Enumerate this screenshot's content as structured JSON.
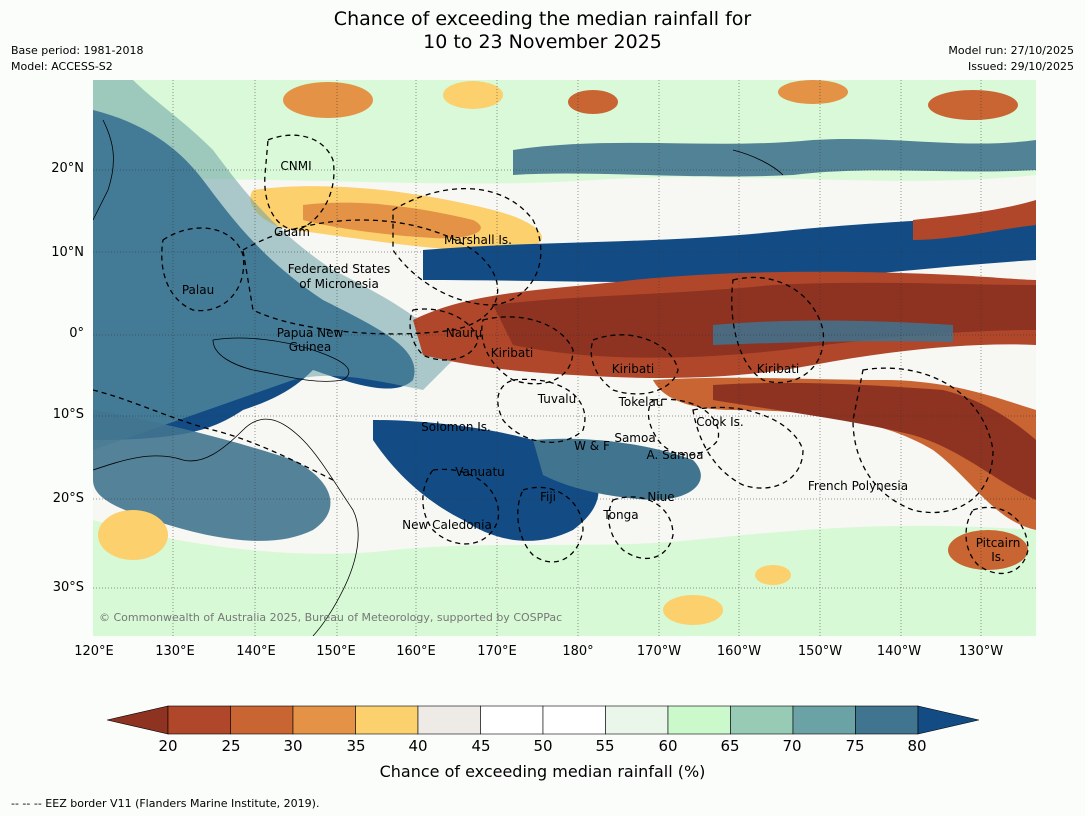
{
  "header": {
    "title_line1": "Chance of exceeding the median rainfall for",
    "title_line2": "10 to 23 November 2025",
    "base_period": "Base period: 1981-2018",
    "model": "Model: ACCESS-S2",
    "model_run": "Model run: 27/10/2025",
    "issued": "Issued: 29/10/2025"
  },
  "map": {
    "lat_ticks": [
      "20°N",
      "10°N",
      "0°",
      "10°S",
      "20°S",
      "30°S"
    ],
    "lon_ticks": [
      "120°E",
      "130°E",
      "140°E",
      "150°E",
      "160°E",
      "170°E",
      "180°",
      "170°W",
      "160°W",
      "150°W",
      "140°W",
      "130°W"
    ],
    "regions": {
      "cnmi": "CNMI",
      "guam": "Guam",
      "marshall": "Marshall Is.",
      "fsm_1": "Federated States",
      "fsm_2": "of Micronesia",
      "palau": "Palau",
      "png_1": "Papua New",
      "png_2": "Guinea",
      "nauru": "Nauru",
      "kiribati_w": "Kiribati",
      "kiribati_c": "Kiribati",
      "kiribati_e": "Kiribati",
      "tuvalu": "Tuvalu",
      "tokelau": "Tokelau",
      "cook": "Cook Is.",
      "solomon": "Solomon Is.",
      "wf": "W & F",
      "samoa": "Samoa",
      "asamoa": "A. Samoa",
      "vanuatu": "Vanuatu",
      "fiji": "Fiji",
      "niue": "Niue",
      "french_polynesia": "French Polynesia",
      "tonga": "Tonga",
      "new_caledonia": "New Caledonia",
      "pitcairn_1": "Pitcairn",
      "pitcairn_2": "Is."
    },
    "copyright": "© Commonwealth of Australia 2025, Bureau of Meteorology, supported by COSPPac"
  },
  "legend": {
    "ticks": [
      "20",
      "25",
      "30",
      "35",
      "40",
      "45",
      "50",
      "55",
      "60",
      "65",
      "70",
      "75",
      "80"
    ],
    "bins": [
      {
        "range": "<20",
        "color": "#8e3221"
      },
      {
        "range": "20-25",
        "color": "#b0472a"
      },
      {
        "range": "25-30",
        "color": "#c86533"
      },
      {
        "range": "30-35",
        "color": "#e39246"
      },
      {
        "range": "35-40",
        "color": "#fcd06c"
      },
      {
        "range": "40-45",
        "color": "#eeeae6"
      },
      {
        "range": "45-50",
        "color": "#ffffff"
      },
      {
        "range": "50-55",
        "color": "#ffffff"
      },
      {
        "range": "55-60",
        "color": "#e9f6e9"
      },
      {
        "range": "60-65",
        "color": "#ccf9cc"
      },
      {
        "range": "65-70",
        "color": "#98cbb5"
      },
      {
        "range": "70-75",
        "color": "#6ba2a6"
      },
      {
        "range": "75-80",
        "color": "#41748f"
      },
      {
        "range": ">80",
        "color": "#134c85"
      }
    ],
    "label": "Chance of exceeding median rainfall (%)"
  },
  "footer": {
    "eez_note": "--  --  -- EEZ border V11 (Flanders Marine Institute, 2019)."
  }
}
